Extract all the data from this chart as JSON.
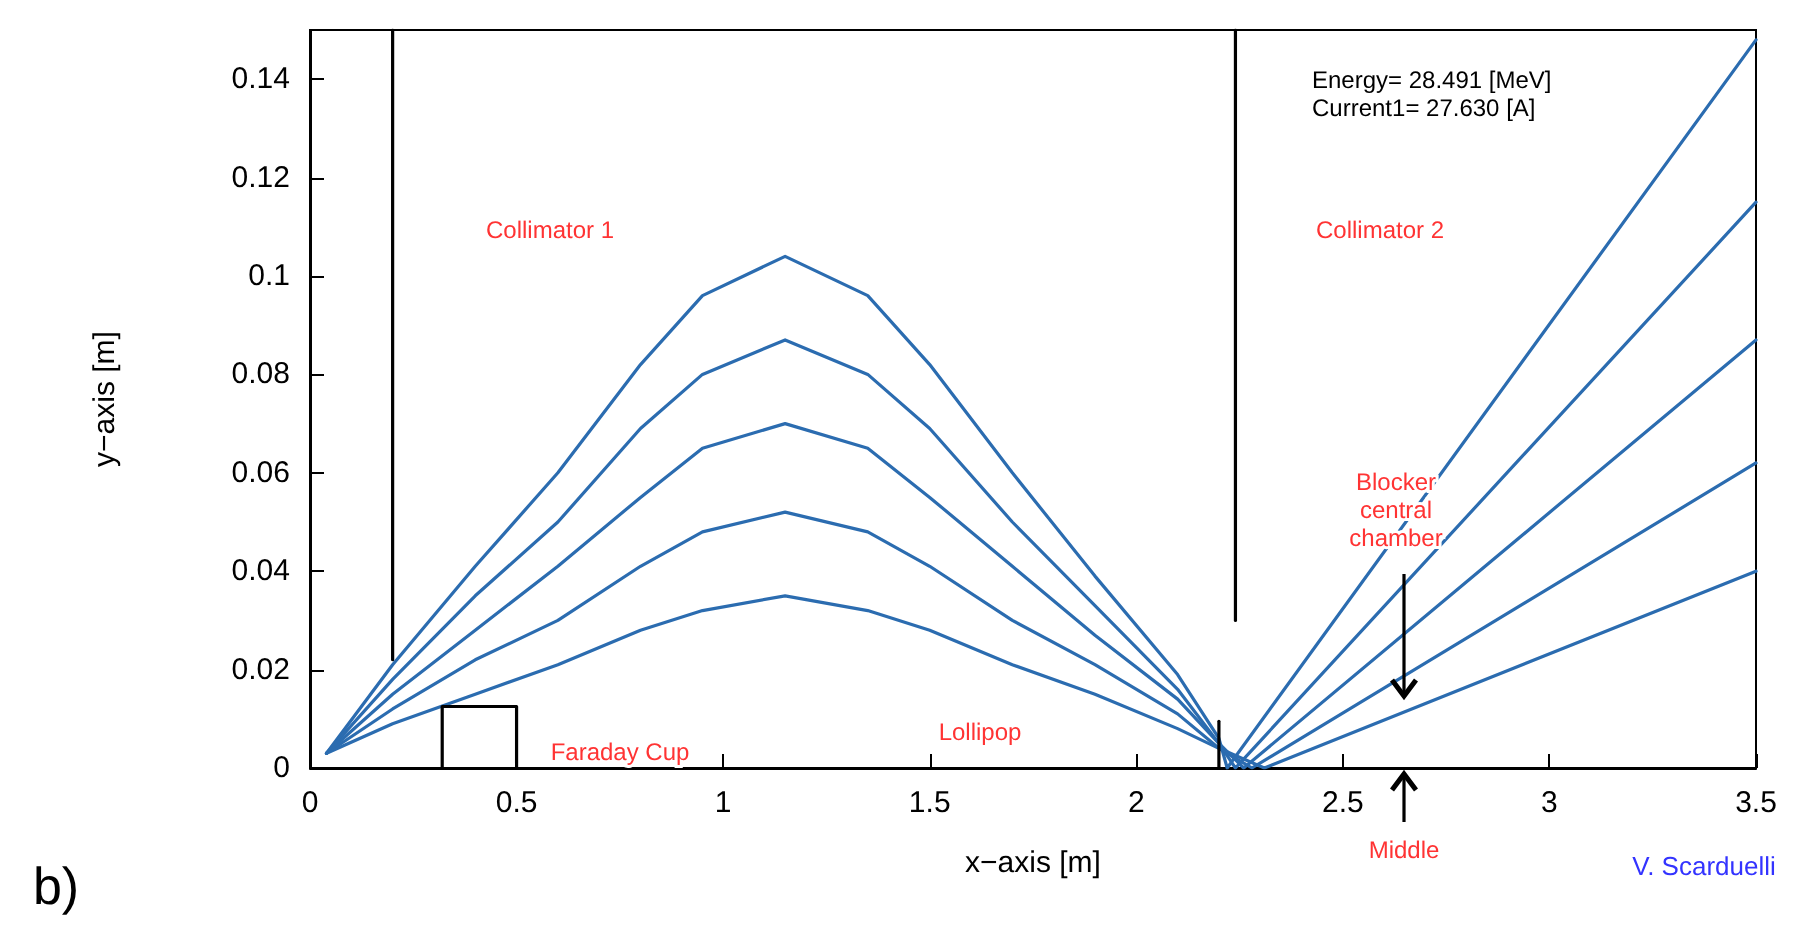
{
  "chart_data": {
    "type": "line",
    "xlabel": "x−axis [m]",
    "ylabel": "y−axis [m]",
    "xlim": [
      0,
      3.5
    ],
    "ylim": [
      0,
      0.15
    ],
    "xticks": [
      0,
      0.5,
      1,
      1.5,
      2,
      2.5,
      3,
      3.5
    ],
    "yticks": [
      0,
      0.02,
      0.04,
      0.06,
      0.08,
      0.1,
      0.12,
      0.14
    ],
    "grid": false,
    "marker": "none",
    "line_style": "solid",
    "series": [
      {
        "color": "#2b6cb0",
        "x": [
          0.04,
          0.2,
          0.4,
          0.6,
          0.8,
          0.95,
          1.15,
          1.35,
          1.5,
          1.7,
          1.9,
          2.1,
          2.2,
          2.22,
          3.5
        ],
        "values": [
          0.003,
          0.021,
          0.041,
          0.06,
          0.082,
          0.096,
          0.104,
          0.096,
          0.082,
          0.06,
          0.039,
          0.019,
          0.006,
          0,
          0.148
        ]
      },
      {
        "color": "#2b6cb0",
        "x": [
          0.04,
          0.2,
          0.4,
          0.6,
          0.8,
          0.95,
          1.15,
          1.35,
          1.5,
          1.7,
          1.9,
          2.1,
          2.2,
          2.24,
          3.5
        ],
        "values": [
          0.003,
          0.018,
          0.035,
          0.05,
          0.069,
          0.08,
          0.087,
          0.08,
          0.069,
          0.05,
          0.033,
          0.016,
          0.005,
          0,
          0.115
        ]
      },
      {
        "color": "#2b6cb0",
        "x": [
          0.04,
          0.2,
          0.4,
          0.6,
          0.8,
          0.95,
          1.15,
          1.35,
          1.5,
          1.7,
          1.9,
          2.1,
          2.2,
          2.26,
          3.5
        ],
        "values": [
          0.003,
          0.015,
          0.028,
          0.041,
          0.055,
          0.065,
          0.07,
          0.065,
          0.055,
          0.041,
          0.027,
          0.014,
          0.005,
          0,
          0.087
        ]
      },
      {
        "color": "#2b6cb0",
        "x": [
          0.04,
          0.2,
          0.4,
          0.6,
          0.8,
          0.95,
          1.15,
          1.35,
          1.5,
          1.7,
          1.9,
          2.1,
          2.2,
          2.28,
          3.5
        ],
        "values": [
          0.003,
          0.012,
          0.022,
          0.03,
          0.041,
          0.048,
          0.052,
          0.048,
          0.041,
          0.03,
          0.021,
          0.011,
          0.004,
          0,
          0.062
        ]
      },
      {
        "color": "#2b6cb0",
        "x": [
          0.04,
          0.2,
          0.4,
          0.6,
          0.8,
          0.95,
          1.15,
          1.35,
          1.5,
          1.7,
          1.9,
          2.1,
          2.2,
          2.31,
          3.5
        ],
        "values": [
          0.003,
          0.009,
          0.015,
          0.021,
          0.028,
          0.032,
          0.035,
          0.032,
          0.028,
          0.021,
          0.015,
          0.008,
          0.004,
          0,
          0.04
        ]
      },
      {
        "color": "#000000",
        "x": [
          0.2,
          0.2
        ],
        "values": [
          0.022,
          0.15
        ]
      },
      {
        "color": "#000000",
        "x": [
          2.24,
          2.24
        ],
        "values": [
          0.03,
          0.15
        ]
      },
      {
        "color": "#000000",
        "x": [
          2.2,
          2.2
        ],
        "values": [
          0,
          0.0095
        ]
      },
      {
        "color": "#000000",
        "x": [
          0.32,
          0.32,
          0.5,
          0.5
        ],
        "values": [
          0,
          0.0125,
          0.0125,
          0
        ]
      }
    ],
    "annotations": [
      "Collimator 1",
      "Collimator 2",
      "Faraday Cup",
      "Lollipop",
      "Blocker\ncentral\nchamber",
      "Middle",
      "Energy= 28.491 [MeV]",
      "Current1= 27.630 [A]",
      "V. Scarduelli",
      "b)"
    ]
  }
}
